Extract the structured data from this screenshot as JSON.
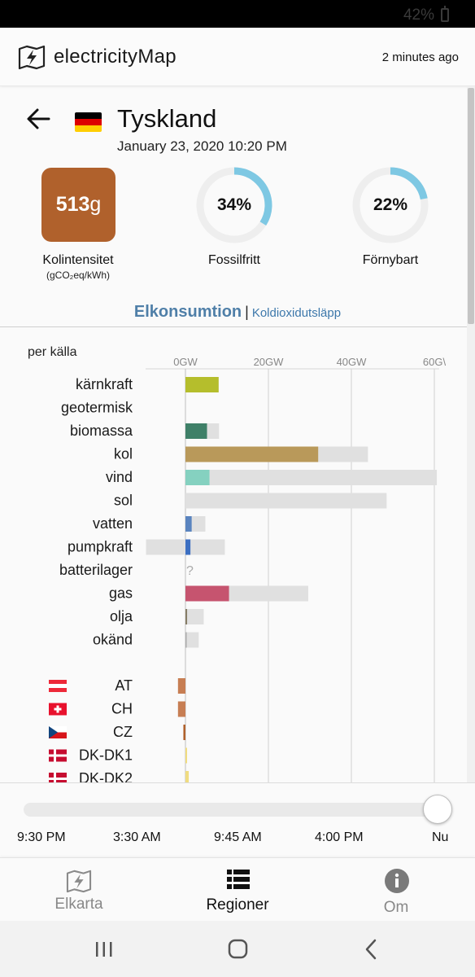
{
  "status_bar": {
    "battery": "42%"
  },
  "header": {
    "app_name": "electricityMap",
    "updated": "2 minutes ago"
  },
  "country": {
    "name": "Tyskland",
    "datetime": "January 23, 2020 10:20 PM"
  },
  "metrics": {
    "carbon_value": "513",
    "carbon_unit_suffix": "g",
    "carbon_color": "#b0612c",
    "carbon_label": "Kolintensitet",
    "carbon_unit": "(gCO₂eq/kWh)",
    "fossil_free_text": "34%",
    "fossil_free_fraction": 0.34,
    "fossil_free_label": "Fossilfritt",
    "renewable_text": "22%",
    "renewable_fraction": 0.22,
    "renewable_label": "Förnybart",
    "gauge_color": "#7ec8e3"
  },
  "mode": {
    "active": "Elkonsumtion",
    "separator": "|",
    "inactive": "Koldioxidutsläpp"
  },
  "chart_data": {
    "type": "bar",
    "subtitle": "per källa",
    "x_ticks": [
      {
        "value": 0,
        "label": "0GW"
      },
      {
        "value": 20,
        "label": "20GW"
      },
      {
        "value": 40,
        "label": "40GW"
      },
      {
        "value": 60,
        "label": "60G\\"
      }
    ],
    "xlim": [
      -8,
      60.6
    ],
    "unit": "GW",
    "rows": [
      {
        "label": "kärnkraft",
        "value": 8.0,
        "capacity": 8.0,
        "color": "#b5be2c"
      },
      {
        "label": "geotermisk",
        "value": null,
        "capacity": null,
        "color": "#999999"
      },
      {
        "label": "biomassa",
        "value": 5.2,
        "capacity": 8.1,
        "color": "#3f8068"
      },
      {
        "label": "kol",
        "value": 32.0,
        "capacity": 44.0,
        "color": "#b9995a"
      },
      {
        "label": "vind",
        "value": 5.8,
        "capacity": 60.6,
        "color": "#85d1c0"
      },
      {
        "label": "sol",
        "value": 0,
        "capacity": 48.5,
        "color": "#f5d24a"
      },
      {
        "label": "vatten",
        "value": 1.5,
        "capacity": 4.8,
        "color": "#5a84bf"
      },
      {
        "label": "pumpkraft",
        "value": 1.2,
        "capacity": 9.5,
        "capacity_neg": -9.5,
        "color": "#3c6fc2"
      },
      {
        "label": "batterilager",
        "value": null,
        "capacity": null,
        "unknown": "?",
        "color": "#999999"
      },
      {
        "label": "gas",
        "value": 10.5,
        "capacity": 29.6,
        "color": "#c6546f"
      },
      {
        "label": "olja",
        "value": 0.4,
        "capacity": 4.4,
        "color": "#867d66"
      },
      {
        "label": "okänd",
        "value": 0.3,
        "capacity": 3.2,
        "color": "#acacac"
      }
    ],
    "exchanges": [
      {
        "label": "AT",
        "value": -1.8,
        "color": "#c77e53"
      },
      {
        "label": "CH",
        "value": -1.8,
        "color": "#c77e53"
      },
      {
        "label": "CZ",
        "value": -0.5,
        "color": "#b0612c"
      },
      {
        "label": "DK-DK1",
        "value": 0.3,
        "color": "#f0dc80"
      },
      {
        "label": "DK-DK2",
        "value": 0.8,
        "color": "#f0dc80"
      }
    ],
    "grid": true
  },
  "timeline": {
    "labels": [
      "9:30 PM",
      "3:30 AM",
      "9:45 AM",
      "4:00 PM",
      "Nu"
    ],
    "position": 1.0
  },
  "bottom_nav": {
    "items": [
      {
        "label": "Elkarta",
        "icon": "map-icon",
        "active": false
      },
      {
        "label": "Regioner",
        "icon": "list-icon",
        "active": true
      },
      {
        "label": "Om",
        "icon": "info-icon",
        "active": false
      }
    ]
  },
  "android_nav": {
    "recents": "recents-icon",
    "home": "home-icon",
    "back": "back-icon"
  }
}
